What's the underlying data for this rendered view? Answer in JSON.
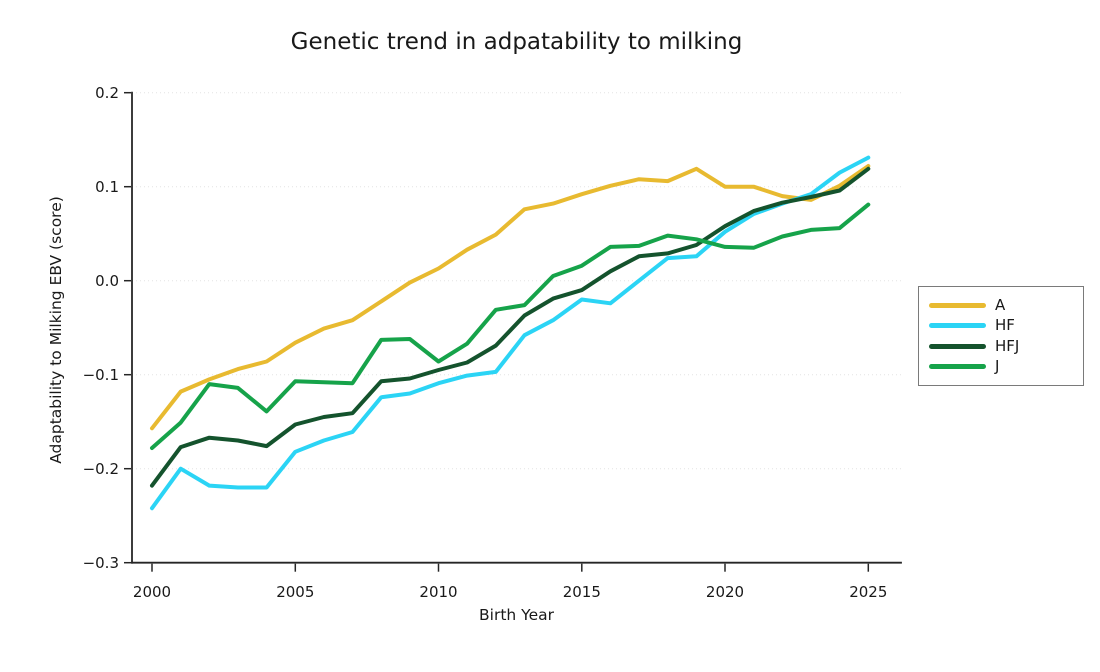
{
  "title": "Genetic trend in adpatability to milking",
  "axes": {
    "x": {
      "label": "Birth Year",
      "tick_labels": [
        "2000",
        "2005",
        "2010",
        "2015",
        "2020",
        "2025"
      ],
      "tick_values": [
        2000,
        2005,
        2010,
        2015,
        2020,
        2025
      ],
      "range": [
        2000,
        2025
      ]
    },
    "y": {
      "label": "Adaptability to Milking EBV (score)",
      "tick_labels": [
        "0.2",
        "0.1",
        "0.0",
        "−0.1",
        "−0.2",
        "−0.3"
      ],
      "tick_values": [
        0.2,
        0.1,
        0.0,
        -0.1,
        -0.2,
        -0.3
      ],
      "range": [
        -0.3,
        0.2
      ]
    }
  },
  "legend": {
    "position": "right",
    "entries": [
      {
        "label": "A"
      },
      {
        "label": "HF"
      },
      {
        "label": "HFJ"
      },
      {
        "label": "J"
      }
    ]
  },
  "chart_data": {
    "type": "line",
    "title": "Genetic trend in adpatability to milking",
    "xlabel": "Birth Year",
    "ylabel": "Adaptability to Milking EBV (score)",
    "xlim": [
      2000,
      2025
    ],
    "ylim": [
      -0.3,
      0.2
    ],
    "grid": "horizontal-dotted",
    "legend_position": "right-outside",
    "x": [
      2000,
      2001,
      2002,
      2003,
      2004,
      2005,
      2006,
      2007,
      2008,
      2009,
      2010,
      2011,
      2012,
      2013,
      2014,
      2015,
      2016,
      2017,
      2018,
      2019,
      2020,
      2021,
      2022,
      2023,
      2024,
      2025
    ],
    "series": [
      {
        "name": "A",
        "color": "#E8BA30",
        "values": [
          -0.157,
          -0.118,
          -0.105,
          -0.094,
          -0.086,
          -0.066,
          -0.051,
          -0.042,
          -0.022,
          -0.002,
          0.013,
          0.033,
          0.049,
          0.076,
          0.082,
          0.092,
          0.101,
          0.108,
          0.106,
          0.119,
          0.1,
          0.1,
          0.09,
          0.086,
          0.101,
          0.122
        ]
      },
      {
        "name": "HF",
        "color": "#2BD4F5",
        "values": [
          -0.242,
          -0.2,
          -0.218,
          -0.22,
          -0.22,
          -0.182,
          -0.17,
          -0.161,
          -0.124,
          -0.12,
          -0.109,
          -0.101,
          -0.097,
          -0.058,
          -0.042,
          -0.02,
          -0.024,
          0.0,
          0.024,
          0.026,
          0.052,
          0.071,
          0.082,
          0.092,
          0.115,
          0.131
        ]
      },
      {
        "name": "HFJ",
        "color": "#14532D",
        "values": [
          -0.218,
          -0.177,
          -0.167,
          -0.17,
          -0.176,
          -0.153,
          -0.145,
          -0.141,
          -0.107,
          -0.104,
          -0.095,
          -0.087,
          -0.069,
          -0.037,
          -0.019,
          -0.01,
          0.01,
          0.026,
          0.029,
          0.038,
          0.058,
          0.074,
          0.083,
          0.089,
          0.096,
          0.119
        ]
      },
      {
        "name": "J",
        "color": "#16A34A",
        "values": [
          -0.178,
          -0.151,
          -0.11,
          -0.114,
          -0.139,
          -0.107,
          -0.108,
          -0.109,
          -0.063,
          -0.062,
          -0.086,
          -0.067,
          -0.031,
          -0.026,
          0.005,
          0.016,
          0.036,
          0.037,
          0.048,
          0.044,
          0.036,
          0.035,
          0.047,
          0.054,
          0.056,
          0.081
        ]
      }
    ]
  }
}
